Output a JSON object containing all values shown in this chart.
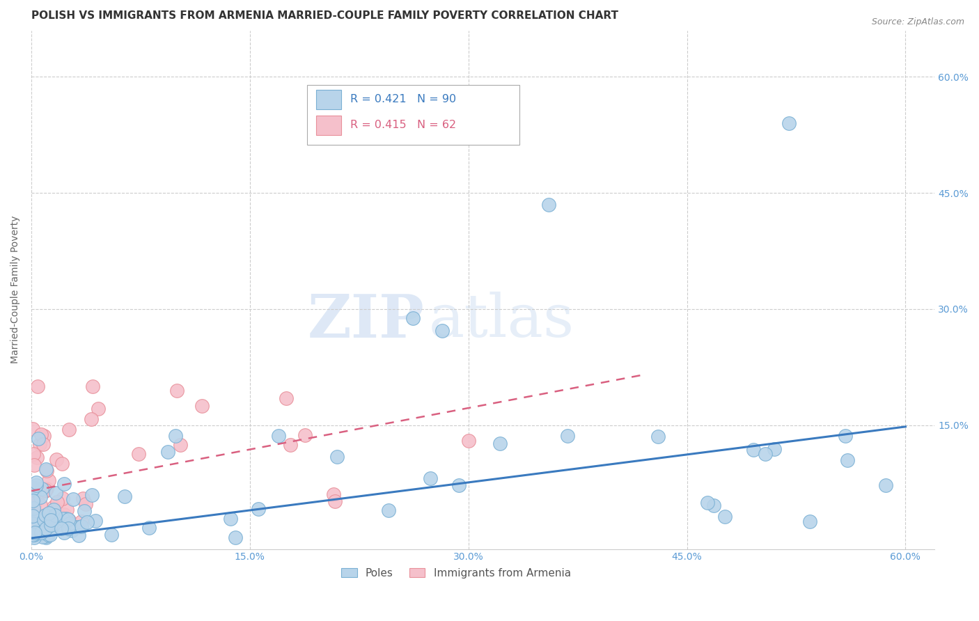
{
  "title": "POLISH VS IMMIGRANTS FROM ARMENIA MARRIED-COUPLE FAMILY POVERTY CORRELATION CHART",
  "source": "Source: ZipAtlas.com",
  "ylabel": "Married-Couple Family Poverty",
  "xlim": [
    0.0,
    0.62
  ],
  "ylim": [
    -0.01,
    0.66
  ],
  "xticks": [
    0.0,
    0.15,
    0.3,
    0.45,
    0.6
  ],
  "xtick_labels": [
    "0.0%",
    "15.0%",
    "30.0%",
    "45.0%",
    "60.0%"
  ],
  "ytick_labels_right": [
    "60.0%",
    "45.0%",
    "30.0%",
    "15.0%"
  ],
  "ytick_positions_right": [
    0.6,
    0.45,
    0.3,
    0.15
  ],
  "grid_color": "#cccccc",
  "background_color": "#ffffff",
  "poles_color": "#b8d4ea",
  "poles_edge_color": "#7ab0d4",
  "armenia_color": "#f5c0cb",
  "armenia_edge_color": "#e8909a",
  "poles_line_color": "#3a7abf",
  "armenia_line_color": "#d96080",
  "poles_R": "0.421",
  "poles_N": "90",
  "armenia_R": "0.415",
  "armenia_N": "62",
  "legend_label_poles": "Poles",
  "legend_label_armenia": "Immigrants from Armenia",
  "watermark_zip": "ZIP",
  "watermark_atlas": "atlas",
  "title_fontsize": 11,
  "axis_label_fontsize": 10,
  "tick_fontsize": 10,
  "legend_fontsize": 11,
  "source_fontsize": 9,
  "poles_trend_x": [
    0.0,
    0.6
  ],
  "poles_trend_y": [
    0.004,
    0.148
  ],
  "armenia_trend_x": [
    0.0,
    0.42
  ],
  "armenia_trend_y": [
    0.065,
    0.215
  ]
}
